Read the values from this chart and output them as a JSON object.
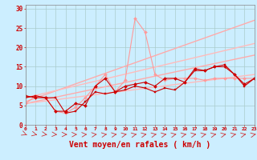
{
  "background_color": "#cceeff",
  "grid_color": "#aacccc",
  "xlabel": "Vent moyen/en rafales ( km/h )",
  "xlabel_color": "#cc0000",
  "xlabel_fontsize": 7,
  "tick_color": "#cc0000",
  "yticks": [
    0,
    5,
    10,
    15,
    20,
    25,
    30
  ],
  "xticks": [
    0,
    1,
    2,
    3,
    4,
    5,
    6,
    7,
    8,
    9,
    10,
    11,
    12,
    13,
    14,
    15,
    16,
    17,
    18,
    19,
    20,
    21,
    22,
    23
  ],
  "xlim": [
    0,
    23
  ],
  "ylim": [
    0,
    31
  ],
  "lines": [
    {
      "x": [
        0,
        23
      ],
      "y": [
        6.0,
        27.0
      ],
      "color": "#ffaaaa",
      "lw": 1.0,
      "marker": null
    },
    {
      "x": [
        0,
        23
      ],
      "y": [
        5.5,
        18.0
      ],
      "color": "#ffaaaa",
      "lw": 1.0,
      "marker": null
    },
    {
      "x": [
        0,
        23
      ],
      "y": [
        7.0,
        21.0
      ],
      "color": "#ffbbbb",
      "lw": 1.0,
      "marker": null
    },
    {
      "x": [
        0,
        23
      ],
      "y": [
        5.5,
        13.0
      ],
      "color": "#ffbbbb",
      "lw": 1.0,
      "marker": null
    },
    {
      "x": [
        0,
        1,
        2,
        3,
        4,
        5,
        6,
        7,
        8,
        9,
        10,
        11,
        12,
        13,
        14,
        15,
        16,
        17,
        18,
        19,
        20,
        21,
        22,
        23
      ],
      "y": [
        5.5,
        7.5,
        7,
        3.5,
        3,
        4.5,
        7,
        10,
        13,
        8.5,
        11.5,
        27.5,
        24,
        13,
        11.5,
        12,
        12,
        12,
        11.5,
        12,
        12,
        12,
        12,
        12
      ],
      "color": "#ff9999",
      "lw": 0.8,
      "marker": "D",
      "ms": 2.0
    },
    {
      "x": [
        0,
        1,
        2,
        3,
        4,
        5,
        6,
        7,
        8,
        9,
        10,
        11,
        12,
        13,
        14,
        15,
        16,
        17,
        18,
        19,
        20,
        21,
        22,
        23
      ],
      "y": [
        7.5,
        7,
        7,
        3.5,
        3.5,
        5.5,
        5,
        10,
        12,
        8.5,
        10,
        10.5,
        11,
        10,
        12,
        12,
        11,
        14.5,
        14,
        15,
        15,
        13,
        10.5,
        12
      ],
      "color": "#cc0000",
      "lw": 0.8,
      "marker": "D",
      "ms": 2.0
    },
    {
      "x": [
        0,
        1,
        2,
        3,
        4,
        5,
        6,
        7,
        8,
        9,
        10,
        11,
        12,
        13,
        14,
        15,
        16,
        17,
        18,
        19,
        20,
        21,
        22,
        23
      ],
      "y": [
        7,
        7.5,
        7,
        7,
        3,
        3.5,
        6,
        8.5,
        8,
        8.5,
        9,
        10,
        9.5,
        8.5,
        9.5,
        9,
        11,
        14,
        14,
        15,
        15.5,
        13,
        10,
        12
      ],
      "color": "#cc0000",
      "lw": 0.8,
      "marker": "s",
      "ms": 2.0
    }
  ],
  "wind_arrows_color": "#cc3333",
  "wind_angles": [
    135,
    120,
    110,
    100,
    90,
    85,
    80,
    75,
    70,
    70,
    65,
    65,
    65,
    65,
    65,
    65,
    65,
    65,
    65,
    65,
    65,
    65,
    65,
    65
  ]
}
